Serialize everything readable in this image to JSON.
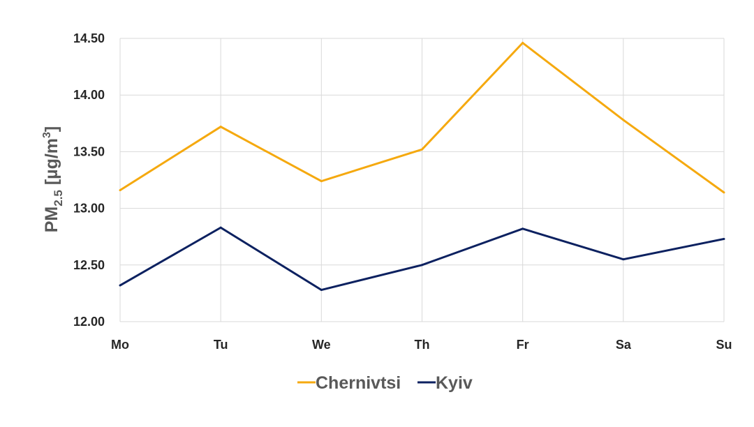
{
  "chart_data": {
    "type": "line",
    "categories": [
      "Mo",
      "Tu",
      "We",
      "Th",
      "Fr",
      "Sa",
      "Su"
    ],
    "series": [
      {
        "name": "Chernivtsi",
        "color": "#f5a90f",
        "values": [
          13.16,
          13.72,
          13.24,
          13.52,
          14.46,
          13.78,
          13.14
        ]
      },
      {
        "name": "Kyiv",
        "color": "#0c2160",
        "values": [
          12.32,
          12.83,
          12.28,
          12.5,
          12.82,
          12.55,
          12.73
        ]
      }
    ],
    "ylabel": {
      "main": "PM",
      "subscript": "2.5",
      "units": " [µg/m",
      "superscript": "3",
      "close": "]"
    },
    "ylim": [
      12.0,
      14.5
    ],
    "yticks": [
      "12.00",
      "12.50",
      "13.00",
      "13.50",
      "14.00",
      "14.50"
    ],
    "grid": true,
    "legend_position": "bottom"
  }
}
